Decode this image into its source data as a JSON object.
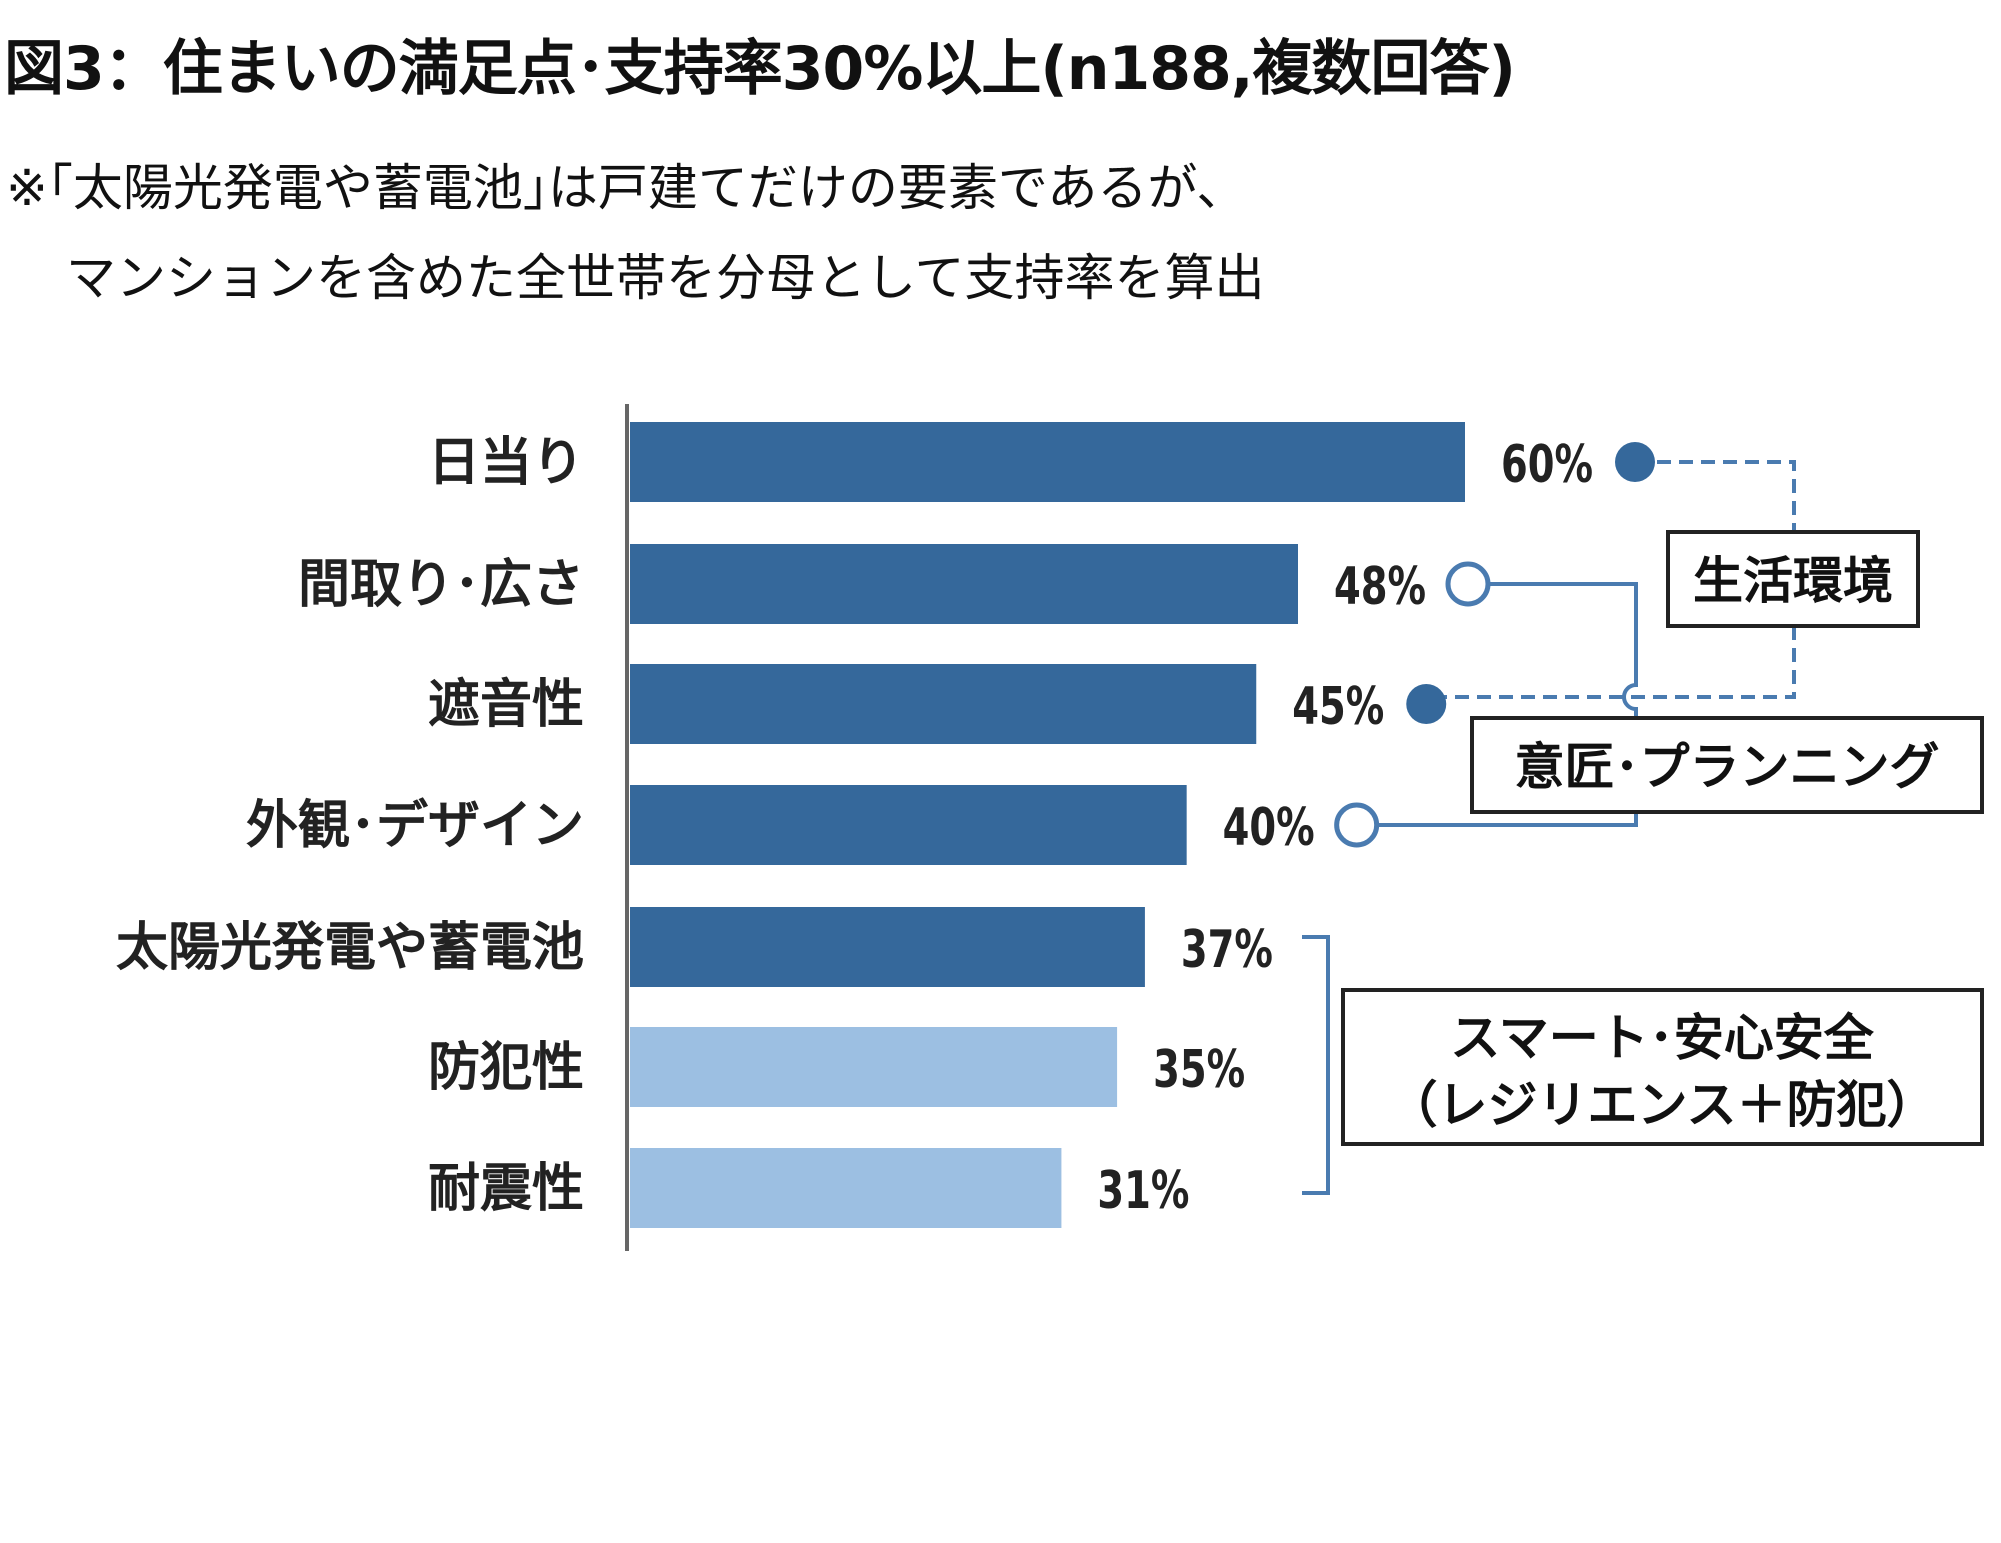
{
  "title": "図3：住まいの満足点･支持率30%以上(n188,複数回答)",
  "note_lines": [
    "※｢太陽光発電や蓄電池｣は戸建てだけの要素であるが、",
    "マンションを含めた全世帯を分母として支持率を算出"
  ],
  "colors": {
    "dark": "#35689b",
    "light": "#9cbfe2",
    "connector": "#4a7bb0"
  },
  "chart_data": {
    "type": "bar",
    "orientation": "horizontal",
    "categories": [
      "日当り",
      "間取り･広さ",
      "遮音性",
      "外観･デザイン",
      "太陽光発電や蓄電池",
      "防犯性",
      "耐震性"
    ],
    "values": [
      60,
      48,
      45,
      40,
      37,
      35,
      31
    ],
    "value_labels": [
      "60%",
      "48%",
      "45%",
      "40%",
      "37%",
      "35%",
      "31%"
    ],
    "bar_shades": [
      "dark",
      "dark",
      "dark",
      "dark",
      "dark",
      "light",
      "light"
    ],
    "unit": "%",
    "xlim": [
      0,
      60
    ],
    "grid": false,
    "groups": [
      {
        "label": "生活環境",
        "members": [
          "日当り",
          "遮音性"
        ],
        "marker": "filled-dot",
        "line": "dashed"
      },
      {
        "label": "意匠･プランニング",
        "members": [
          "間取り･広さ",
          "外観･デザイン"
        ],
        "marker": "open-circle",
        "line": "solid"
      },
      {
        "label_lines": [
          "スマート･安心安全",
          "（レジリエンス＋防犯）"
        ],
        "members": [
          "太陽光発電や蓄電池",
          "防犯性",
          "耐震性"
        ],
        "marker": "bracket"
      }
    ]
  }
}
